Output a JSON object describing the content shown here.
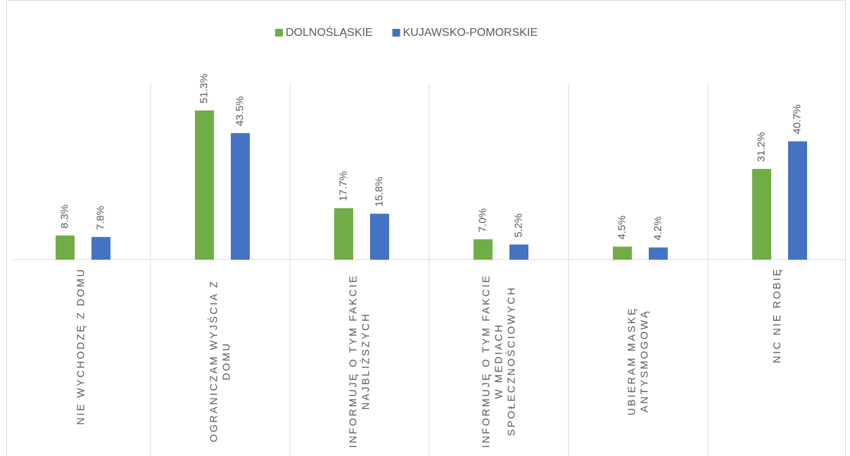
{
  "chart_data": {
    "type": "bar",
    "categories": [
      "NIE WYCHODZĘ Z DOMU",
      "OGRANICZAM WYJŚCIA Z DOMU",
      "INFORMUJĘ O TYM FAKCIE NAJBLIŻSZYCH",
      "INFORMUJĘ O TYM FAKCIE W MEDIACH SPOŁECZNOŚCIOWYCH",
      "UBIERAM MASKĘ ANTYSMOGOWĄ",
      "NIC NIE ROBIĘ"
    ],
    "series": [
      {
        "name": "DOLNOŚLĄSKIE",
        "color": "#70ad47",
        "values": [
          8.3,
          51.3,
          17.7,
          7.0,
          4.5,
          31.2
        ],
        "value_labels": [
          "8.3%",
          "51.3%",
          "17.7%",
          "7.0%",
          "4.5%",
          "31.2%"
        ]
      },
      {
        "name": "KUJAWSKO-POMORSKIE",
        "color": "#4472c4",
        "values": [
          7.8,
          43.5,
          15.8,
          5.2,
          4.2,
          40.7
        ],
        "value_labels": [
          "7.8%",
          "43.5%",
          "15.8%",
          "5.2%",
          "4.2%",
          "40.7%"
        ]
      }
    ],
    "ylim": [
      0,
      60
    ],
    "legend": "top"
  }
}
